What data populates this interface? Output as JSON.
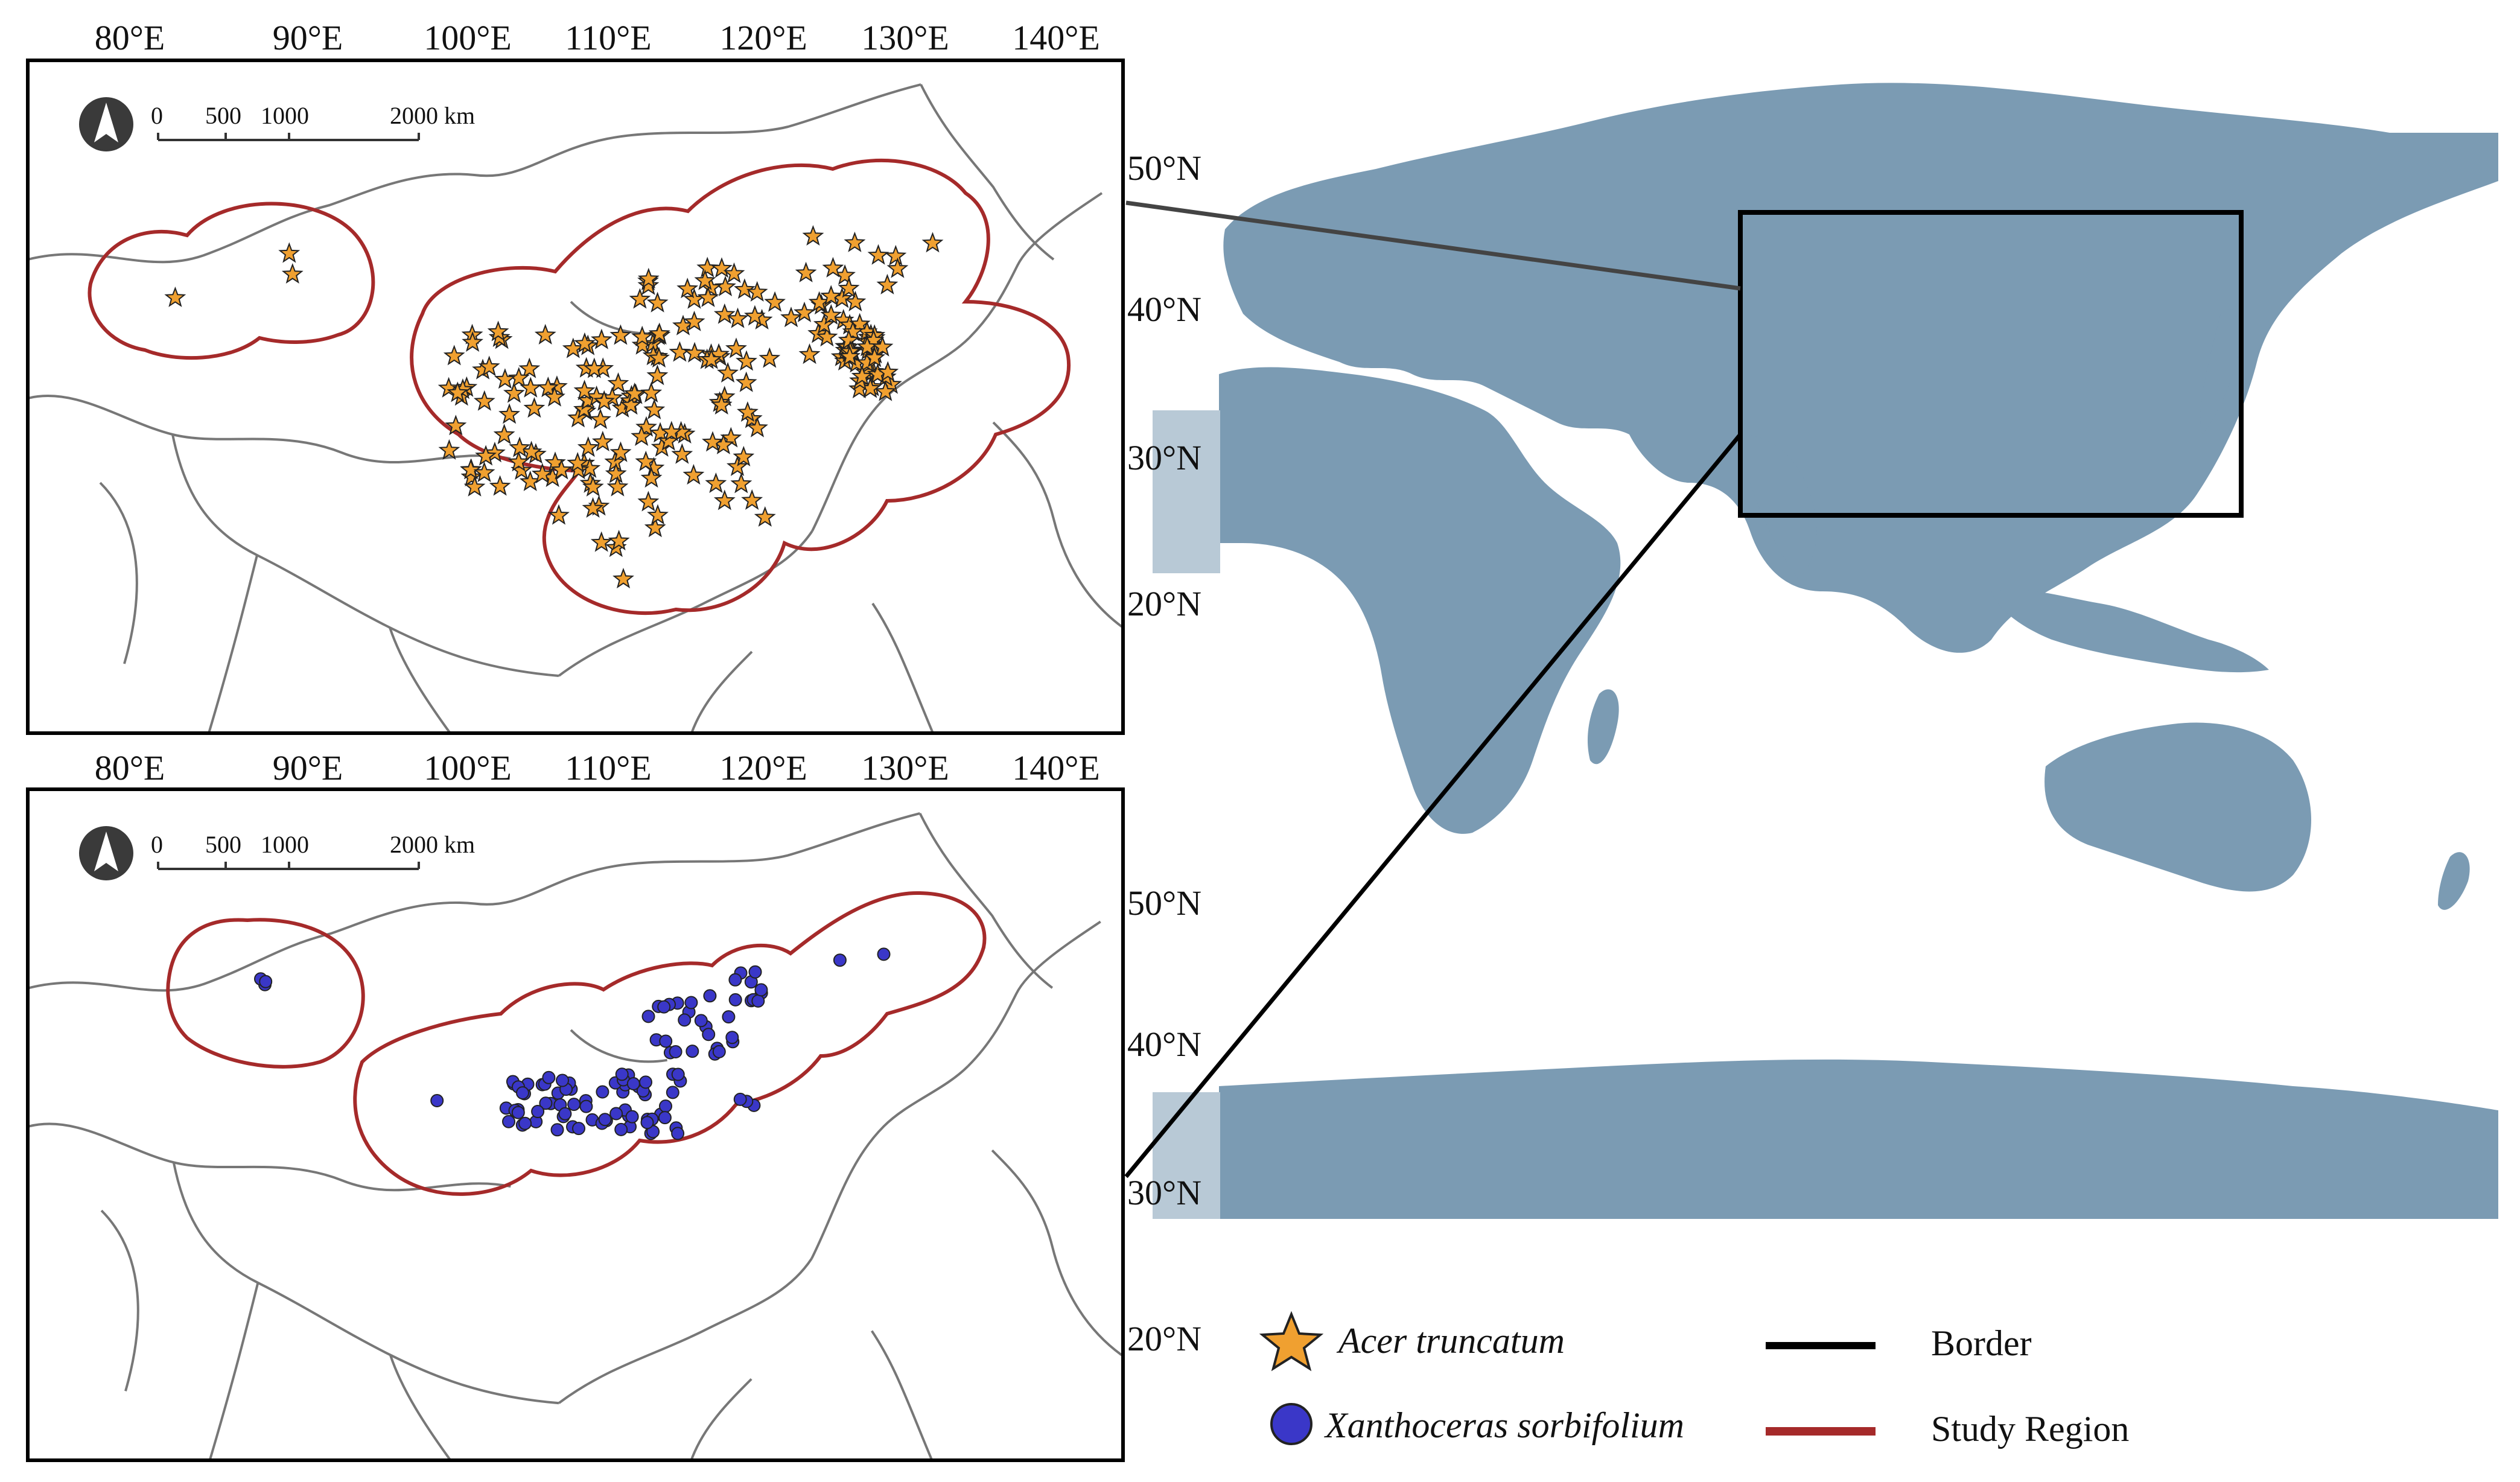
{
  "colors": {
    "land_world": "#7b9bb3",
    "land_inset_fill": "#ffffff",
    "border_line": "#000000",
    "study_region": "#a52a2a",
    "acer_marker": "#f0a030",
    "xanthoceras_marker": "#3a37c8",
    "boundary_grey": "#888888"
  },
  "panels": [
    {
      "id": "top",
      "lon_labels": [
        "80°E",
        "90°E",
        "100°E",
        "110°E",
        "120°E",
        "130°E",
        "140°E"
      ],
      "lat_labels": [
        "50°N",
        "40°N",
        "30°N",
        "20°N"
      ],
      "scale_bar": {
        "ticks": [
          "0",
          "500",
          "1000",
          "2000 km"
        ]
      },
      "north_arrow": "north-arrow-icon",
      "species": "Acer truncatum",
      "marker_icon": "star-icon"
    },
    {
      "id": "bottom",
      "lon_labels": [
        "80°E",
        "90°E",
        "100°E",
        "110°E",
        "120°E",
        "130°E",
        "140°E"
      ],
      "lat_labels": [
        "50°N",
        "40°N",
        "30°N",
        "20°N"
      ],
      "scale_bar": {
        "ticks": [
          "0",
          "500",
          "1000",
          "2000 km"
        ]
      },
      "north_arrow": "north-arrow-icon",
      "species": "Xanthoceras sorbifolium",
      "marker_icon": "circle-icon"
    }
  ],
  "legend": {
    "items": [
      {
        "label": "Acer truncatum",
        "icon": "star-icon"
      },
      {
        "label": "Xanthoceras sorbifolium",
        "icon": "circle-icon"
      },
      {
        "label": "Border",
        "icon": "black-line-icon"
      },
      {
        "label": "Study Region",
        "icon": "red-line-icon"
      }
    ]
  }
}
